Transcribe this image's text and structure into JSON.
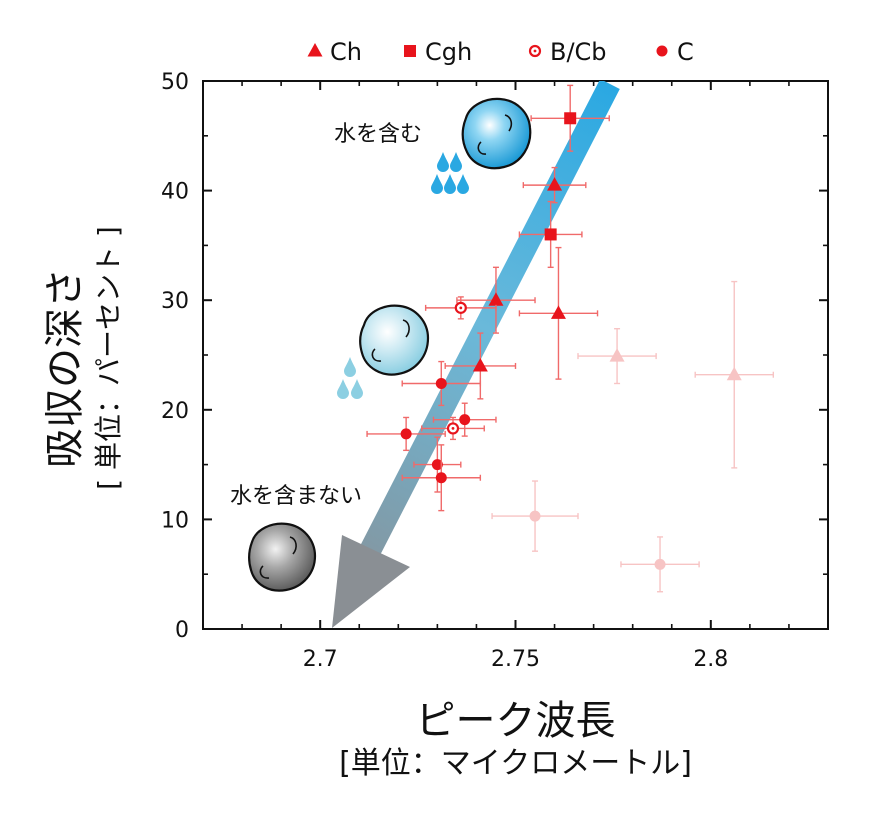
{
  "chart_data": {
    "type": "scatter",
    "xlabel": "ピーク波長",
    "xunit": "[単位：マイクロメートル]",
    "ylabel": "吸収の深さ",
    "yunit": "[ 単位：パーセント ]",
    "xlim": [
      2.67,
      2.83
    ],
    "ylim": [
      0,
      50
    ],
    "xticks": [
      "2.7",
      "2.75",
      "2.8"
    ],
    "yticks": [
      "0",
      "10",
      "20",
      "30",
      "40",
      "50"
    ],
    "legend_position": "top",
    "legend": [
      {
        "label": "Ch",
        "marker": "triangle"
      },
      {
        "label": "Cgh",
        "marker": "square"
      },
      {
        "label": "B/Cb",
        "marker": "open-circle"
      },
      {
        "label": "C",
        "marker": "circle"
      }
    ],
    "series": [
      {
        "name": "Ch",
        "marker": "triangle",
        "color": "#e8141c",
        "points": [
          {
            "x": 2.76,
            "y": 40.5,
            "xerr": 0.008,
            "yerr": 1.6
          },
          {
            "x": 2.745,
            "y": 30.0,
            "xerr": 0.01,
            "yerr": 3.0
          },
          {
            "x": 2.761,
            "y": 28.8,
            "xerr": 0.01,
            "yerr": 6.0
          },
          {
            "x": 2.741,
            "y": 24.0,
            "xerr": 0.009,
            "yerr": 3.0
          }
        ]
      },
      {
        "name": "Cgh",
        "marker": "square",
        "color": "#e8141c",
        "points": [
          {
            "x": 2.764,
            "y": 46.6,
            "xerr": 0.01,
            "yerr": 3.0
          },
          {
            "x": 2.759,
            "y": 36.0,
            "xerr": 0.008,
            "yerr": 3.0
          }
        ]
      },
      {
        "name": "B/Cb",
        "marker": "open-circle",
        "color": "#e8141c",
        "points": [
          {
            "x": 2.736,
            "y": 29.3,
            "xerr": 0.009,
            "yerr": 1.0
          },
          {
            "x": 2.734,
            "y": 18.3,
            "xerr": 0.008,
            "yerr": 1.0
          }
        ]
      },
      {
        "name": "C",
        "marker": "circle",
        "color": "#e8141c",
        "points": [
          {
            "x": 2.731,
            "y": 22.4,
            "xerr": 0.01,
            "yerr": 2.0
          },
          {
            "x": 2.737,
            "y": 19.1,
            "xerr": 0.008,
            "yerr": 1.5
          },
          {
            "x": 2.722,
            "y": 17.8,
            "xerr": 0.01,
            "yerr": 1.5
          },
          {
            "x": 2.73,
            "y": 15.0,
            "xerr": 0.006,
            "yerr": 2.5
          },
          {
            "x": 2.731,
            "y": 13.8,
            "xerr": 0.01,
            "yerr": 3.0
          }
        ]
      },
      {
        "name": "",
        "marker": "triangle",
        "color": "#f7c4c4",
        "faded": true,
        "points": [
          {
            "x": 2.776,
            "y": 24.9,
            "xerr": 0.01,
            "yerr": 2.5
          },
          {
            "x": 2.806,
            "y": 23.2,
            "xerr": 0.01,
            "yerr": 8.5
          }
        ]
      },
      {
        "name": "",
        "marker": "circle",
        "color": "#f7c4c4",
        "faded": true,
        "points": [
          {
            "x": 2.755,
            "y": 10.3,
            "xerr": 0.011,
            "yerr": 3.2
          },
          {
            "x": 2.787,
            "y": 5.9,
            "xerr": 0.01,
            "yerr": 2.5
          }
        ]
      }
    ],
    "trend_arrow": {
      "from": {
        "x": 2.772,
        "y": 50.4
      },
      "to": {
        "x": 2.705,
        "y": 0
      },
      "color_start": "#2aa8e2",
      "color_end": "#8a8f94"
    },
    "annotations": [
      {
        "text": "水を含む",
        "at": {
          "x": 2.689,
          "y": 44.3
        }
      },
      {
        "text": "水を含まない",
        "at": {
          "x": 2.686,
          "y": 11.2
        }
      }
    ]
  },
  "colors": {
    "accent": "#e8141c",
    "faded": "#f7c4c4",
    "water": "#2aa8e2",
    "dry": "#8a8f94"
  },
  "icons": [
    "wet-asteroid-icon",
    "moist-asteroid-icon",
    "dry-asteroid-icon",
    "water-drops-icon"
  ]
}
